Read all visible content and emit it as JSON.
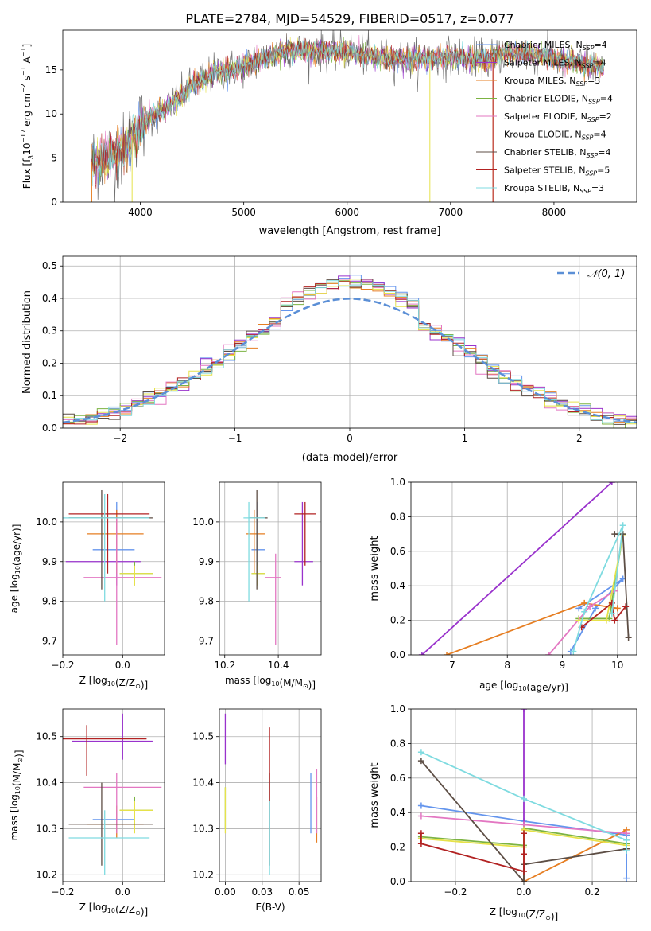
{
  "figure_title": "PLATE=2784, MJD=54529, FIBERID=0517, z=0.077",
  "models": [
    {
      "name": "Chabrier MILES, N",
      "sub": "SSP",
      "tail": "=4",
      "color": "#6495ed"
    },
    {
      "name": "Salpeter MILES, N",
      "sub": "SSP",
      "tail": "=4",
      "color": "#9932cc"
    },
    {
      "name": "Kroupa MILES, N",
      "sub": "SSP",
      "tail": "=3",
      "color": "#e67e22"
    },
    {
      "name": "Chabrier ELODIE, N",
      "sub": "SSP",
      "tail": "=4",
      "color": "#7cb342"
    },
    {
      "name": "Salpeter ELODIE, N",
      "sub": "SSP",
      "tail": "=2",
      "color": "#e377c2"
    },
    {
      "name": "Kroupa ELODIE, N",
      "sub": "SSP",
      "tail": "=4",
      "color": "#e6e24a"
    },
    {
      "name": "Chabrier STELIB, N",
      "sub": "SSP",
      "tail": "=4",
      "color": "#5d4e45"
    },
    {
      "name": "Salpeter STELIB, N",
      "sub": "SSP",
      "tail": "=5",
      "color": "#b22222"
    },
    {
      "name": "Kroupa STELIB, N",
      "sub": "SSP",
      "tail": "=3",
      "color": "#7fdbe0"
    }
  ],
  "chart_data": [
    {
      "id": "spectrum",
      "type": "line",
      "xlabel": "wavelength [Angstrom, rest frame]",
      "ylabel_parts": [
        "Flux [f",
        "λ",
        "10",
        "−17",
        " erg cm",
        "−2",
        " s",
        "−1",
        " A",
        "−1",
        "]"
      ],
      "xlim": [
        3250,
        8800
      ],
      "ylim": [
        0,
        19.5
      ],
      "xticks": [
        4000,
        5000,
        6000,
        7000,
        8000
      ],
      "yticks": [
        0,
        5,
        10,
        15
      ],
      "continuum": [
        [
          3530,
          4.6
        ],
        [
          3700,
          5.2
        ],
        [
          3850,
          5.8
        ],
        [
          3950,
          8.2
        ],
        [
          4100,
          9.6
        ],
        [
          4300,
          11.0
        ],
        [
          4500,
          13.2
        ],
        [
          4700,
          14.6
        ],
        [
          5000,
          15.4
        ],
        [
          5200,
          16.2
        ],
        [
          5400,
          17.2
        ],
        [
          5600,
          17.2
        ],
        [
          5800,
          17.1
        ],
        [
          6000,
          17.1
        ],
        [
          6200,
          16.6
        ],
        [
          6400,
          16.4
        ],
        [
          6600,
          16.2
        ],
        [
          6800,
          16.2
        ],
        [
          7000,
          16.5
        ],
        [
          7200,
          16.3
        ],
        [
          7350,
          16.1
        ],
        [
          7500,
          16.9
        ],
        [
          7700,
          16.9
        ],
        [
          7900,
          16.6
        ],
        [
          8100,
          16.0
        ],
        [
          8300,
          15.6
        ],
        [
          8480,
          15.2
        ]
      ]
    },
    {
      "id": "residuals",
      "type": "histogram",
      "xlabel": "(data-model)/error",
      "ylabel": "Normed distribution",
      "xlim": [
        -2.5,
        2.5
      ],
      "ylim": [
        0,
        0.53
      ],
      "xticks": [
        -2,
        -1,
        0,
        1,
        2
      ],
      "yticks": [
        0.0,
        0.1,
        0.2,
        0.3,
        0.4,
        0.5
      ],
      "bin_width": 0.1,
      "normal_label": "𝒩(0, 1)",
      "normal_color": "#5b8fd6"
    },
    {
      "id": "age-vs-Z",
      "type": "errorbar",
      "xlabel": "Z [log10(Z/Z⊙)]",
      "ylabel": "age [log10(age/yr)]",
      "xlim": [
        -0.2,
        0.14
      ],
      "ylim": [
        9.665,
        10.1
      ],
      "xticks": [
        -0.2,
        0.0
      ],
      "yticks": [
        9.7,
        9.8,
        9.9,
        10.0
      ],
      "points": [
        {
          "x": -0.02,
          "y": 9.93,
          "xl": 0.08,
          "xh": 0.06,
          "yl": 0.07,
          "yh": 0.12
        },
        {
          "x": -0.02,
          "y": 9.9,
          "xl": 0.17,
          "xh": 0.08,
          "yl": 0.06,
          "yh": 0.13
        },
        {
          "x": -0.02,
          "y": 9.97,
          "xl": 0.1,
          "xh": 0.09,
          "yl": 0.1,
          "yh": 0.06
        },
        {
          "x": 0.04,
          "y": 9.87,
          "xl": 0.05,
          "xh": 0.06,
          "yl": 0.03,
          "yh": 0.03
        },
        {
          "x": -0.02,
          "y": 9.86,
          "xl": 0.11,
          "xh": 0.15,
          "yl": 0.17,
          "yh": 0.15
        },
        {
          "x": 0.04,
          "y": 9.87,
          "xl": 0.05,
          "xh": 0.06,
          "yl": 0.03,
          "yh": 0.02
        },
        {
          "x": -0.07,
          "y": 10.01,
          "xl": 0.11,
          "xh": 0.17,
          "yl": 0.18,
          "yh": 0.07
        },
        {
          "x": -0.05,
          "y": 10.02,
          "xl": 0.13,
          "xh": 0.14,
          "yl": 0.15,
          "yh": 0.05
        },
        {
          "x": -0.06,
          "y": 10.01,
          "xl": 0.14,
          "xh": 0.15,
          "yl": 0.21,
          "yh": 0.06
        }
      ]
    },
    {
      "id": "age-vs-mass",
      "type": "errorbar",
      "xlabel": "mass [log10(M/M⊙)]",
      "ylabel": "",
      "xlim": [
        10.18,
        10.56
      ],
      "ylim": [
        9.665,
        10.1
      ],
      "xticks": [
        10.2,
        10.4
      ],
      "yticks": [
        9.7,
        9.8,
        9.9,
        10.0
      ],
      "points": [
        {
          "x": 10.32,
          "y": 9.93,
          "xl": 0.02,
          "xh": 0.03,
          "yl": 0.07,
          "yh": 0.12
        },
        {
          "x": 10.49,
          "y": 9.9,
          "xl": 0.03,
          "xh": 0.04,
          "yl": 0.06,
          "yh": 0.15
        },
        {
          "x": 10.31,
          "y": 9.97,
          "xl": 0.03,
          "xh": 0.04,
          "yl": 0.1,
          "yh": 0.06
        },
        {
          "x": 10.32,
          "y": 9.87,
          "xl": 0.02,
          "xh": 0.03,
          "yl": 0.03,
          "yh": 0.03
        },
        {
          "x": 10.39,
          "y": 9.86,
          "xl": 0.04,
          "xh": 0.02,
          "yl": 0.17,
          "yh": 0.06
        },
        {
          "x": 10.32,
          "y": 9.87,
          "xl": 0.02,
          "xh": 0.03,
          "yl": 0.03,
          "yh": 0.02
        },
        {
          "x": 10.32,
          "y": 10.01,
          "xl": 0.03,
          "xh": 0.04,
          "yl": 0.18,
          "yh": 0.07
        },
        {
          "x": 10.5,
          "y": 10.02,
          "xl": 0.04,
          "xh": 0.04,
          "yl": 0.13,
          "yh": 0.03
        },
        {
          "x": 10.29,
          "y": 10.01,
          "xl": 0.02,
          "xh": 0.06,
          "yl": 0.21,
          "yh": 0.04
        }
      ]
    },
    {
      "id": "mass-weight-vs-age",
      "type": "line",
      "xlabel": "age [log10(age/yr)]",
      "ylabel": "mass weight",
      "xlim": [
        6.25,
        10.35
      ],
      "ylim": [
        0,
        1
      ],
      "xticks": [
        7,
        8,
        9,
        10
      ],
      "yticks": [
        0.0,
        0.2,
        0.4,
        0.6,
        0.8,
        1.0
      ],
      "series": [
        {
          "points": [
            [
              9.15,
              0.02
            ],
            [
              9.6,
              0.27
            ],
            [
              10.1,
              0.44
            ],
            [
              9.3,
              0.27
            ]
          ]
        },
        {
          "points": [
            [
              6.45,
              0.0
            ],
            [
              9.9,
              1.0
            ]
          ]
        },
        {
          "points": [
            [
              6.9,
              0.0
            ],
            [
              9.4,
              0.3
            ],
            [
              10.0,
              0.27
            ]
          ]
        },
        {
          "points": [
            [
              9.3,
              0.21
            ],
            [
              9.85,
              0.21
            ],
            [
              10.1,
              0.7
            ]
          ]
        },
        {
          "points": [
            [
              8.75,
              0.0
            ],
            [
              9.5,
              0.28
            ],
            [
              9.95,
              0.37
            ]
          ]
        },
        {
          "points": [
            [
              9.3,
              0.2
            ],
            [
              9.8,
              0.2
            ],
            [
              10.1,
              0.69
            ]
          ]
        },
        {
          "points": [
            [
              9.95,
              0.7
            ],
            [
              10.1,
              0.7
            ],
            [
              10.2,
              0.1
            ]
          ]
        },
        {
          "points": [
            [
              9.35,
              0.16
            ],
            [
              9.9,
              0.3
            ],
            [
              9.95,
              0.2
            ],
            [
              10.15,
              0.28
            ]
          ]
        },
        {
          "points": [
            [
              9.2,
              0.02
            ],
            [
              9.4,
              0.25
            ],
            [
              10.1,
              0.75
            ],
            [
              9.9,
              0.24
            ]
          ]
        }
      ]
    },
    {
      "id": "mass-vs-Z",
      "type": "errorbar",
      "xlabel": "Z [log10(Z/Z⊙)]",
      "ylabel": "mass [log10(M/M⊙)]",
      "xlim": [
        -0.2,
        0.14
      ],
      "ylim": [
        10.185,
        10.56
      ],
      "xticks": [
        -0.2,
        0.0
      ],
      "yticks": [
        10.2,
        10.3,
        10.4,
        10.5
      ],
      "points": [
        {
          "x": -0.02,
          "y": 10.32,
          "xl": 0.08,
          "xh": 0.06,
          "yl": 0.03,
          "yh": 0.02
        },
        {
          "x": 0.0,
          "y": 10.49,
          "xl": 0.17,
          "xh": 0.1,
          "yl": 0.04,
          "yh": 0.06
        },
        {
          "x": -0.02,
          "y": 10.31,
          "xl": 0.1,
          "xh": 0.09,
          "yl": 0.03,
          "yh": 0.04
        },
        {
          "x": 0.04,
          "y": 10.34,
          "xl": 0.05,
          "xh": 0.06,
          "yl": 0.04,
          "yh": 0.03
        },
        {
          "x": -0.02,
          "y": 10.39,
          "xl": 0.11,
          "xh": 0.15,
          "yl": 0.1,
          "yh": 0.03
        },
        {
          "x": 0.04,
          "y": 10.34,
          "xl": 0.05,
          "xh": 0.06,
          "yl": 0.05,
          "yh": 0.02
        },
        {
          "x": -0.07,
          "y": 10.31,
          "xl": 0.11,
          "xh": 0.17,
          "yl": 0.09,
          "yh": 0.09
        },
        {
          "x": -0.12,
          "y": 10.495,
          "xl": 0.08,
          "xh": 0.2,
          "yl": 0.08,
          "yh": 0.03
        },
        {
          "x": -0.06,
          "y": 10.28,
          "xl": 0.12,
          "xh": 0.15,
          "yl": 0.08,
          "yh": 0.06
        }
      ]
    },
    {
      "id": "mass-vs-EBV",
      "type": "errorbar",
      "xlabel": "E(B-V)",
      "ylabel": "",
      "xlim": [
        -0.004,
        0.065
      ],
      "ylim": [
        10.185,
        10.56
      ],
      "xticks": [
        0.0,
        0.025,
        0.05
      ],
      "yticks": [
        10.2,
        10.3,
        10.4,
        10.5
      ],
      "points": [
        {
          "x": 0.058,
          "y": 10.32,
          "xl": 0.0,
          "xh": 0.0,
          "yl": 0.03,
          "yh": 0.1
        },
        {
          "x": 0.0,
          "y": 10.49,
          "xl": 0.0,
          "xh": 0.0,
          "yl": 0.05,
          "yh": 0.06
        },
        {
          "x": 0.062,
          "y": 10.31,
          "xl": 0.0,
          "xh": 0.0,
          "yl": 0.04,
          "yh": 0.06
        },
        {
          "x": 0.0,
          "y": 10.34,
          "xl": 0.0,
          "xh": 0.0,
          "yl": 0.04,
          "yh": 0.05
        },
        {
          "x": 0.062,
          "y": 10.39,
          "xl": 0.0,
          "xh": 0.0,
          "yl": 0.1,
          "yh": 0.04
        },
        {
          "x": 0.0,
          "y": 10.34,
          "xl": 0.0,
          "xh": 0.0,
          "yl": 0.05,
          "yh": 0.05
        },
        {
          "x": 0.03,
          "y": 10.36,
          "xl": 0.0,
          "xh": 0.0,
          "yl": 0.14,
          "yh": 0.06
        },
        {
          "x": 0.03,
          "y": 10.46,
          "xl": 0.0,
          "xh": 0.0,
          "yl": 0.1,
          "yh": 0.06
        },
        {
          "x": 0.03,
          "y": 10.3,
          "xl": 0.0,
          "xh": 0.0,
          "yl": 0.1,
          "yh": 0.06
        }
      ]
    },
    {
      "id": "mass-weight-vs-Z",
      "type": "line",
      "xlabel": "Z [log10(Z/Z⊙)]",
      "ylabel": "mass weight",
      "xlim": [
        -0.33,
        0.33
      ],
      "ylim": [
        0,
        1
      ],
      "xticks": [
        -0.2,
        0.0,
        0.2
      ],
      "yticks": [
        0.0,
        0.2,
        0.4,
        0.6,
        0.8,
        1.0
      ],
      "series": [
        {
          "points": [
            [
              -0.3,
              0.44
            ],
            [
              0.0,
              0.35
            ],
            [
              0.3,
              0.27
            ],
            [
              0.3,
              0.02
            ]
          ]
        },
        {
          "points": [
            [
              0.0,
              1.0
            ],
            [
              0.0,
              0.0
            ]
          ]
        },
        {
          "points": [
            [
              0.0,
              0.3
            ],
            [
              0.0,
              0.0
            ],
            [
              0.3,
              0.3
            ]
          ]
        },
        {
          "points": [
            [
              -0.3,
              0.26
            ],
            [
              0.0,
              0.21
            ],
            [
              0.0,
              0.31
            ],
            [
              0.3,
              0.22
            ]
          ]
        },
        {
          "points": [
            [
              -0.3,
              0.38
            ],
            [
              0.0,
              0.33
            ],
            [
              0.3,
              0.28
            ]
          ]
        },
        {
          "points": [
            [
              -0.3,
              0.25
            ],
            [
              0.0,
              0.2
            ],
            [
              0.0,
              0.3
            ],
            [
              0.3,
              0.21
            ]
          ]
        },
        {
          "points": [
            [
              -0.3,
              0.7
            ],
            [
              0.0,
              0.0
            ],
            [
              0.0,
              0.1
            ],
            [
              0.3,
              0.19
            ]
          ]
        },
        {
          "points": [
            [
              -0.3,
              0.28
            ],
            [
              -0.3,
              0.22
            ],
            [
              0.0,
              0.06
            ],
            [
              0.0,
              0.28
            ],
            [
              0.0,
              0.16
            ]
          ]
        },
        {
          "points": [
            [
              -0.3,
              0.75
            ],
            [
              0.0,
              0.48
            ],
            [
              0.3,
              0.24
            ],
            [
              0.3,
              0.18
            ]
          ]
        }
      ]
    }
  ]
}
